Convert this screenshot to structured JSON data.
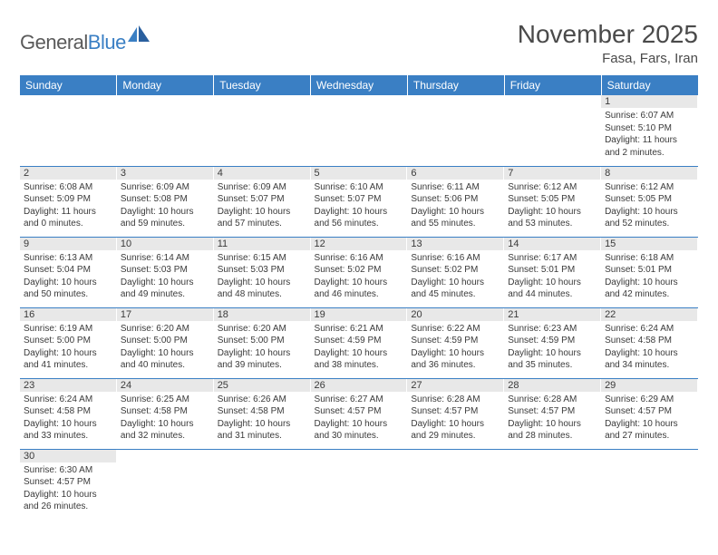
{
  "logo": {
    "part1": "General",
    "part2": "Blue"
  },
  "title": "November 2025",
  "location": "Fasa, Fars, Iran",
  "colors": {
    "header_bg": "#3a7fc4",
    "header_text": "#ffffff",
    "daynum_bg": "#e8e8e8",
    "text": "#3a3a3a",
    "border": "#3a7fc4"
  },
  "dayHeaders": [
    "Sunday",
    "Monday",
    "Tuesday",
    "Wednesday",
    "Thursday",
    "Friday",
    "Saturday"
  ],
  "weeks": [
    [
      null,
      null,
      null,
      null,
      null,
      null,
      {
        "n": "1",
        "sr": "6:07 AM",
        "ss": "5:10 PM",
        "dl": "11 hours and 2 minutes."
      }
    ],
    [
      {
        "n": "2",
        "sr": "6:08 AM",
        "ss": "5:09 PM",
        "dl": "11 hours and 0 minutes."
      },
      {
        "n": "3",
        "sr": "6:09 AM",
        "ss": "5:08 PM",
        "dl": "10 hours and 59 minutes."
      },
      {
        "n": "4",
        "sr": "6:09 AM",
        "ss": "5:07 PM",
        "dl": "10 hours and 57 minutes."
      },
      {
        "n": "5",
        "sr": "6:10 AM",
        "ss": "5:07 PM",
        "dl": "10 hours and 56 minutes."
      },
      {
        "n": "6",
        "sr": "6:11 AM",
        "ss": "5:06 PM",
        "dl": "10 hours and 55 minutes."
      },
      {
        "n": "7",
        "sr": "6:12 AM",
        "ss": "5:05 PM",
        "dl": "10 hours and 53 minutes."
      },
      {
        "n": "8",
        "sr": "6:12 AM",
        "ss": "5:05 PM",
        "dl": "10 hours and 52 minutes."
      }
    ],
    [
      {
        "n": "9",
        "sr": "6:13 AM",
        "ss": "5:04 PM",
        "dl": "10 hours and 50 minutes."
      },
      {
        "n": "10",
        "sr": "6:14 AM",
        "ss": "5:03 PM",
        "dl": "10 hours and 49 minutes."
      },
      {
        "n": "11",
        "sr": "6:15 AM",
        "ss": "5:03 PM",
        "dl": "10 hours and 48 minutes."
      },
      {
        "n": "12",
        "sr": "6:16 AM",
        "ss": "5:02 PM",
        "dl": "10 hours and 46 minutes."
      },
      {
        "n": "13",
        "sr": "6:16 AM",
        "ss": "5:02 PM",
        "dl": "10 hours and 45 minutes."
      },
      {
        "n": "14",
        "sr": "6:17 AM",
        "ss": "5:01 PM",
        "dl": "10 hours and 44 minutes."
      },
      {
        "n": "15",
        "sr": "6:18 AM",
        "ss": "5:01 PM",
        "dl": "10 hours and 42 minutes."
      }
    ],
    [
      {
        "n": "16",
        "sr": "6:19 AM",
        "ss": "5:00 PM",
        "dl": "10 hours and 41 minutes."
      },
      {
        "n": "17",
        "sr": "6:20 AM",
        "ss": "5:00 PM",
        "dl": "10 hours and 40 minutes."
      },
      {
        "n": "18",
        "sr": "6:20 AM",
        "ss": "5:00 PM",
        "dl": "10 hours and 39 minutes."
      },
      {
        "n": "19",
        "sr": "6:21 AM",
        "ss": "4:59 PM",
        "dl": "10 hours and 38 minutes."
      },
      {
        "n": "20",
        "sr": "6:22 AM",
        "ss": "4:59 PM",
        "dl": "10 hours and 36 minutes."
      },
      {
        "n": "21",
        "sr": "6:23 AM",
        "ss": "4:59 PM",
        "dl": "10 hours and 35 minutes."
      },
      {
        "n": "22",
        "sr": "6:24 AM",
        "ss": "4:58 PM",
        "dl": "10 hours and 34 minutes."
      }
    ],
    [
      {
        "n": "23",
        "sr": "6:24 AM",
        "ss": "4:58 PM",
        "dl": "10 hours and 33 minutes."
      },
      {
        "n": "24",
        "sr": "6:25 AM",
        "ss": "4:58 PM",
        "dl": "10 hours and 32 minutes."
      },
      {
        "n": "25",
        "sr": "6:26 AM",
        "ss": "4:58 PM",
        "dl": "10 hours and 31 minutes."
      },
      {
        "n": "26",
        "sr": "6:27 AM",
        "ss": "4:57 PM",
        "dl": "10 hours and 30 minutes."
      },
      {
        "n": "27",
        "sr": "6:28 AM",
        "ss": "4:57 PM",
        "dl": "10 hours and 29 minutes."
      },
      {
        "n": "28",
        "sr": "6:28 AM",
        "ss": "4:57 PM",
        "dl": "10 hours and 28 minutes."
      },
      {
        "n": "29",
        "sr": "6:29 AM",
        "ss": "4:57 PM",
        "dl": "10 hours and 27 minutes."
      }
    ],
    [
      {
        "n": "30",
        "sr": "6:30 AM",
        "ss": "4:57 PM",
        "dl": "10 hours and 26 minutes."
      },
      null,
      null,
      null,
      null,
      null,
      null
    ]
  ],
  "labels": {
    "sunrise": "Sunrise:",
    "sunset": "Sunset:",
    "daylight": "Daylight:"
  }
}
